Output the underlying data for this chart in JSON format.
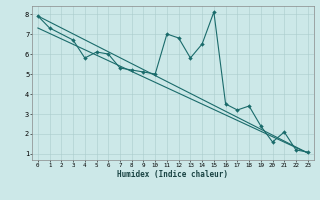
{
  "xlabel": "Humidex (Indice chaleur)",
  "bg_color": "#cce8e8",
  "line_color": "#1a6b6b",
  "grid_color": "#aacccc",
  "xlim": [
    -0.5,
    23.5
  ],
  "ylim": [
    0.7,
    8.4
  ],
  "xticks": [
    0,
    1,
    2,
    3,
    4,
    5,
    6,
    7,
    8,
    9,
    10,
    11,
    12,
    13,
    14,
    15,
    16,
    17,
    18,
    19,
    20,
    21,
    22,
    23
  ],
  "yticks": [
    1,
    2,
    3,
    4,
    5,
    6,
    7,
    8
  ],
  "main_x": [
    0,
    1,
    3,
    4,
    5,
    6,
    7,
    8,
    9,
    10,
    11,
    12,
    13,
    14,
    15,
    16,
    17,
    18,
    19,
    20,
    21,
    22,
    23
  ],
  "main_y": [
    7.9,
    7.3,
    6.7,
    5.8,
    6.1,
    6.0,
    5.3,
    5.2,
    5.1,
    5.0,
    7.0,
    6.8,
    5.8,
    6.5,
    8.1,
    3.5,
    3.2,
    3.4,
    2.4,
    1.6,
    2.1,
    1.2,
    1.1
  ],
  "trend1_x": [
    0,
    23
  ],
  "trend1_y": [
    7.9,
    1.05
  ],
  "trend2_x": [
    0,
    23
  ],
  "trend2_y": [
    7.3,
    1.05
  ]
}
